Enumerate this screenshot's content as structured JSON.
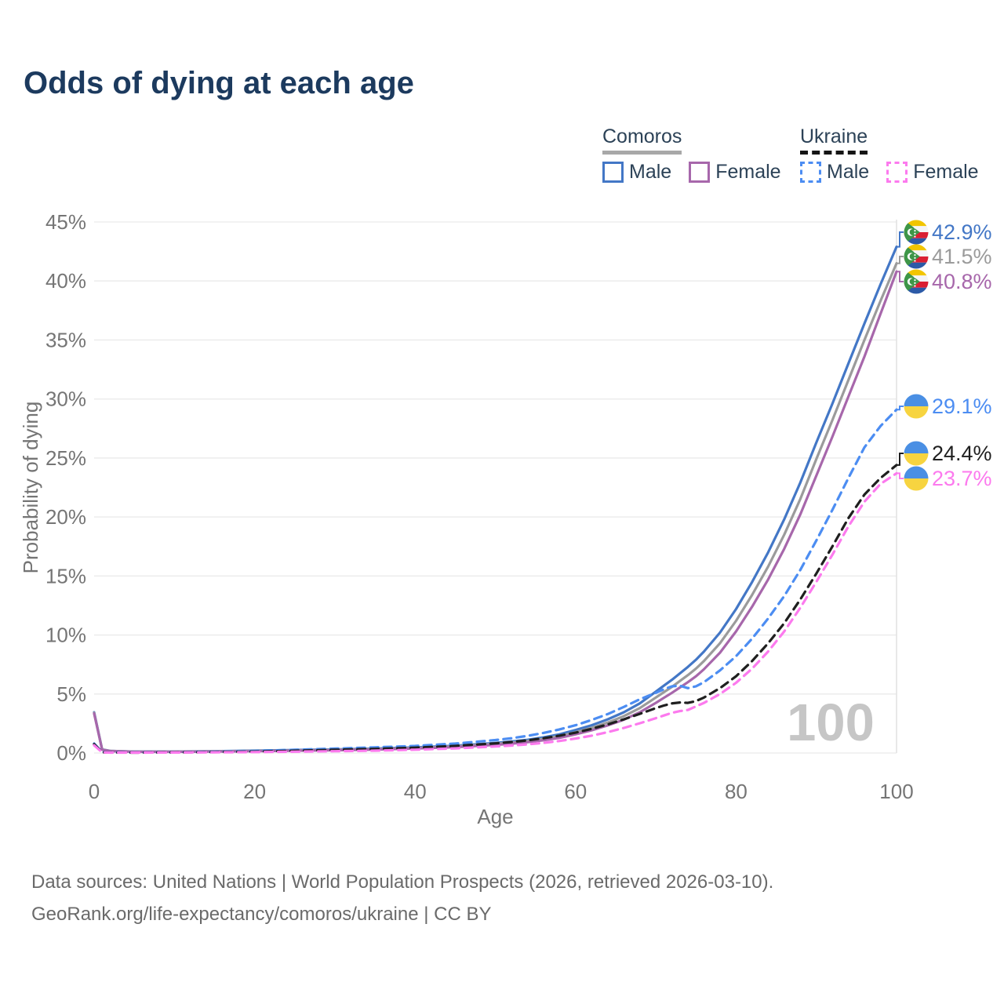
{
  "title": "Odds of dying at each age",
  "legend": {
    "groups": [
      {
        "name": "Comoros",
        "line_style": "solid",
        "items": [
          {
            "label": "Male",
            "color": "#4377C6",
            "dashed": false
          },
          {
            "label": "Female",
            "color": "#A767AB",
            "dashed": false
          }
        ]
      },
      {
        "name": "Ukraine",
        "line_style": "dashed",
        "items": [
          {
            "label": "Male",
            "color": "#4C8DF2",
            "dashed": true
          },
          {
            "label": "Female",
            "color": "#FC7AEE",
            "dashed": true
          }
        ]
      }
    ]
  },
  "watermark": "100",
  "footer": {
    "line1": "Data sources: United Nations | World Population Prospects (2026, retrieved 2026-03-10).",
    "line2": "GeoRank.org/life-expectancy/comoros/ukraine | CC BY"
  },
  "chart_data": {
    "type": "line",
    "title": "Odds of dying at each age",
    "xlabel": "Age",
    "ylabel": "Probability of dying",
    "xlim": [
      0,
      100
    ],
    "ylim": [
      0,
      45
    ],
    "x_ticks": [
      0,
      20,
      40,
      60,
      80,
      100
    ],
    "y_ticks_percent": [
      0,
      5,
      10,
      15,
      20,
      25,
      30,
      35,
      40,
      45
    ],
    "grid": "horizontal",
    "hover_marker": {
      "age": 100,
      "watermark": "100"
    },
    "colors": {
      "gridline": "#ededed",
      "axis_text": "#757575",
      "watermark": "#c6c6c6",
      "marker_line": "#e2e2e2"
    },
    "series": [
      {
        "id": "comoros-male",
        "name": "Comoros Male",
        "color": "#4377C6",
        "dash": false,
        "flag": "comoros",
        "end_label": "42.9%",
        "points": [
          [
            0,
            3.45
          ],
          [
            1,
            0.3
          ],
          [
            2,
            0.18
          ],
          [
            5,
            0.12
          ],
          [
            10,
            0.12
          ],
          [
            15,
            0.15
          ],
          [
            20,
            0.2
          ],
          [
            25,
            0.25
          ],
          [
            30,
            0.3
          ],
          [
            35,
            0.37
          ],
          [
            40,
            0.47
          ],
          [
            45,
            0.62
          ],
          [
            50,
            0.85
          ],
          [
            52,
            0.97
          ],
          [
            54,
            1.12
          ],
          [
            56,
            1.32
          ],
          [
            58,
            1.58
          ],
          [
            60,
            1.95
          ],
          [
            62,
            2.35
          ],
          [
            64,
            2.85
          ],
          [
            66,
            3.45
          ],
          [
            68,
            4.2
          ],
          [
            70,
            5.2
          ],
          [
            71,
            5.7
          ],
          [
            72,
            6.2
          ],
          [
            73,
            6.75
          ],
          [
            74,
            7.3
          ],
          [
            75,
            7.9
          ],
          [
            76,
            8.6
          ],
          [
            78,
            10.2
          ],
          [
            80,
            12.2
          ],
          [
            82,
            14.5
          ],
          [
            84,
            17.0
          ],
          [
            86,
            19.8
          ],
          [
            88,
            22.9
          ],
          [
            90,
            26.3
          ],
          [
            92,
            29.6
          ],
          [
            94,
            33.0
          ],
          [
            96,
            36.4
          ],
          [
            98,
            39.7
          ],
          [
            100,
            42.9
          ]
        ]
      },
      {
        "id": "comoros-both",
        "name": "Comoros (both sexes)",
        "color": "#9B9B9B",
        "dash": false,
        "flag": "comoros",
        "end_label": "41.5%",
        "points": [
          [
            0,
            3.4
          ],
          [
            1,
            0.29
          ],
          [
            2,
            0.17
          ],
          [
            5,
            0.11
          ],
          [
            10,
            0.11
          ],
          [
            15,
            0.14
          ],
          [
            20,
            0.18
          ],
          [
            25,
            0.22
          ],
          [
            30,
            0.27
          ],
          [
            35,
            0.33
          ],
          [
            40,
            0.42
          ],
          [
            45,
            0.56
          ],
          [
            50,
            0.77
          ],
          [
            52,
            0.88
          ],
          [
            54,
            1.02
          ],
          [
            56,
            1.2
          ],
          [
            58,
            1.43
          ],
          [
            60,
            1.76
          ],
          [
            62,
            2.13
          ],
          [
            64,
            2.58
          ],
          [
            66,
            3.12
          ],
          [
            68,
            3.8
          ],
          [
            70,
            4.7
          ],
          [
            71,
            5.15
          ],
          [
            72,
            5.6
          ],
          [
            73,
            6.1
          ],
          [
            74,
            6.6
          ],
          [
            75,
            7.15
          ],
          [
            76,
            7.8
          ],
          [
            78,
            9.3
          ],
          [
            80,
            11.2
          ],
          [
            82,
            13.4
          ],
          [
            84,
            15.8
          ],
          [
            86,
            18.5
          ],
          [
            88,
            21.5
          ],
          [
            90,
            24.9
          ],
          [
            92,
            28.2
          ],
          [
            94,
            31.6
          ],
          [
            96,
            35.0
          ],
          [
            98,
            38.3
          ],
          [
            100,
            41.5
          ]
        ]
      },
      {
        "id": "comoros-female",
        "name": "Comoros Female",
        "color": "#A767AB",
        "dash": false,
        "flag": "comoros",
        "end_label": "40.8%",
        "points": [
          [
            0,
            3.35
          ],
          [
            1,
            0.28
          ],
          [
            2,
            0.16
          ],
          [
            5,
            0.1
          ],
          [
            10,
            0.1
          ],
          [
            15,
            0.12
          ],
          [
            20,
            0.15
          ],
          [
            25,
            0.19
          ],
          [
            30,
            0.23
          ],
          [
            35,
            0.29
          ],
          [
            40,
            0.38
          ],
          [
            45,
            0.5
          ],
          [
            50,
            0.69
          ],
          [
            52,
            0.79
          ],
          [
            54,
            0.92
          ],
          [
            56,
            1.08
          ],
          [
            58,
            1.28
          ],
          [
            60,
            1.58
          ],
          [
            62,
            1.92
          ],
          [
            64,
            2.33
          ],
          [
            66,
            2.82
          ],
          [
            68,
            3.45
          ],
          [
            70,
            4.25
          ],
          [
            71,
            4.67
          ],
          [
            72,
            5.1
          ],
          [
            73,
            5.55
          ],
          [
            74,
            6.0
          ],
          [
            75,
            6.5
          ],
          [
            76,
            7.1
          ],
          [
            78,
            8.5
          ],
          [
            80,
            10.3
          ],
          [
            82,
            12.4
          ],
          [
            84,
            14.7
          ],
          [
            86,
            17.3
          ],
          [
            88,
            20.2
          ],
          [
            90,
            23.5
          ],
          [
            92,
            26.8
          ],
          [
            94,
            30.2
          ],
          [
            96,
            33.6
          ],
          [
            98,
            37.2
          ],
          [
            100,
            40.8
          ]
        ]
      },
      {
        "id": "ukraine-male",
        "name": "Ukraine Male",
        "color": "#4C8DF2",
        "dash": true,
        "flag": "ukraine",
        "end_label": "29.1%",
        "points": [
          [
            0,
            0.8
          ],
          [
            1,
            0.07
          ],
          [
            2,
            0.05
          ],
          [
            5,
            0.04
          ],
          [
            10,
            0.06
          ],
          [
            15,
            0.1
          ],
          [
            20,
            0.17
          ],
          [
            25,
            0.27
          ],
          [
            30,
            0.37
          ],
          [
            35,
            0.48
          ],
          [
            40,
            0.6
          ],
          [
            45,
            0.8
          ],
          [
            50,
            1.1
          ],
          [
            52,
            1.25
          ],
          [
            54,
            1.45
          ],
          [
            56,
            1.7
          ],
          [
            58,
            2.0
          ],
          [
            60,
            2.35
          ],
          [
            62,
            2.8
          ],
          [
            64,
            3.3
          ],
          [
            66,
            3.9
          ],
          [
            68,
            4.55
          ],
          [
            70,
            5.1
          ],
          [
            71,
            5.4
          ],
          [
            72,
            5.65
          ],
          [
            73,
            5.7
          ],
          [
            74,
            5.5
          ],
          [
            75,
            5.65
          ],
          [
            76,
            6.0
          ],
          [
            78,
            7.0
          ],
          [
            80,
            8.2
          ],
          [
            82,
            9.7
          ],
          [
            84,
            11.4
          ],
          [
            86,
            13.3
          ],
          [
            88,
            15.5
          ],
          [
            90,
            18.0
          ],
          [
            92,
            20.6
          ],
          [
            94,
            23.3
          ],
          [
            96,
            25.9
          ],
          [
            98,
            27.7
          ],
          [
            100,
            29.1
          ]
        ]
      },
      {
        "id": "ukraine-both",
        "name": "Ukraine (both sexes)",
        "color": "#1F1F1F",
        "dash": true,
        "flag": "ukraine",
        "end_label": "24.4%",
        "points": [
          [
            0,
            0.75
          ],
          [
            1,
            0.06
          ],
          [
            2,
            0.04
          ],
          [
            5,
            0.03
          ],
          [
            10,
            0.05
          ],
          [
            15,
            0.08
          ],
          [
            20,
            0.12
          ],
          [
            25,
            0.19
          ],
          [
            30,
            0.27
          ],
          [
            35,
            0.35
          ],
          [
            40,
            0.45
          ],
          [
            45,
            0.6
          ],
          [
            50,
            0.82
          ],
          [
            52,
            0.93
          ],
          [
            54,
            1.07
          ],
          [
            56,
            1.25
          ],
          [
            58,
            1.47
          ],
          [
            60,
            1.72
          ],
          [
            62,
            2.05
          ],
          [
            64,
            2.42
          ],
          [
            66,
            2.85
          ],
          [
            68,
            3.32
          ],
          [
            70,
            3.8
          ],
          [
            71,
            4.02
          ],
          [
            72,
            4.2
          ],
          [
            73,
            4.28
          ],
          [
            74,
            4.25
          ],
          [
            75,
            4.4
          ],
          [
            76,
            4.7
          ],
          [
            78,
            5.5
          ],
          [
            80,
            6.5
          ],
          [
            82,
            7.8
          ],
          [
            84,
            9.3
          ],
          [
            86,
            11.0
          ],
          [
            88,
            13.0
          ],
          [
            90,
            15.2
          ],
          [
            92,
            17.5
          ],
          [
            94,
            19.9
          ],
          [
            96,
            21.9
          ],
          [
            98,
            23.3
          ],
          [
            100,
            24.4
          ]
        ]
      },
      {
        "id": "ukraine-female",
        "name": "Ukraine Female",
        "color": "#FC7AEE",
        "dash": true,
        "flag": "ukraine",
        "end_label": "23.7%",
        "points": [
          [
            0,
            0.65
          ],
          [
            1,
            0.05
          ],
          [
            2,
            0.03
          ],
          [
            5,
            0.03
          ],
          [
            10,
            0.04
          ],
          [
            15,
            0.06
          ],
          [
            20,
            0.08
          ],
          [
            25,
            0.11
          ],
          [
            30,
            0.15
          ],
          [
            35,
            0.2
          ],
          [
            40,
            0.28
          ],
          [
            45,
            0.39
          ],
          [
            50,
            0.55
          ],
          [
            52,
            0.63
          ],
          [
            54,
            0.73
          ],
          [
            56,
            0.86
          ],
          [
            58,
            1.02
          ],
          [
            60,
            1.22
          ],
          [
            62,
            1.47
          ],
          [
            64,
            1.77
          ],
          [
            66,
            2.12
          ],
          [
            68,
            2.52
          ],
          [
            70,
            2.95
          ],
          [
            71,
            3.18
          ],
          [
            72,
            3.4
          ],
          [
            73,
            3.55
          ],
          [
            74,
            3.65
          ],
          [
            75,
            3.95
          ],
          [
            76,
            4.25
          ],
          [
            78,
            5.0
          ],
          [
            80,
            5.95
          ],
          [
            82,
            7.15
          ],
          [
            84,
            8.6
          ],
          [
            86,
            10.3
          ],
          [
            88,
            12.3
          ],
          [
            90,
            14.5
          ],
          [
            92,
            16.8
          ],
          [
            94,
            19.2
          ],
          [
            96,
            21.3
          ],
          [
            98,
            22.8
          ],
          [
            100,
            23.7
          ]
        ]
      }
    ]
  }
}
